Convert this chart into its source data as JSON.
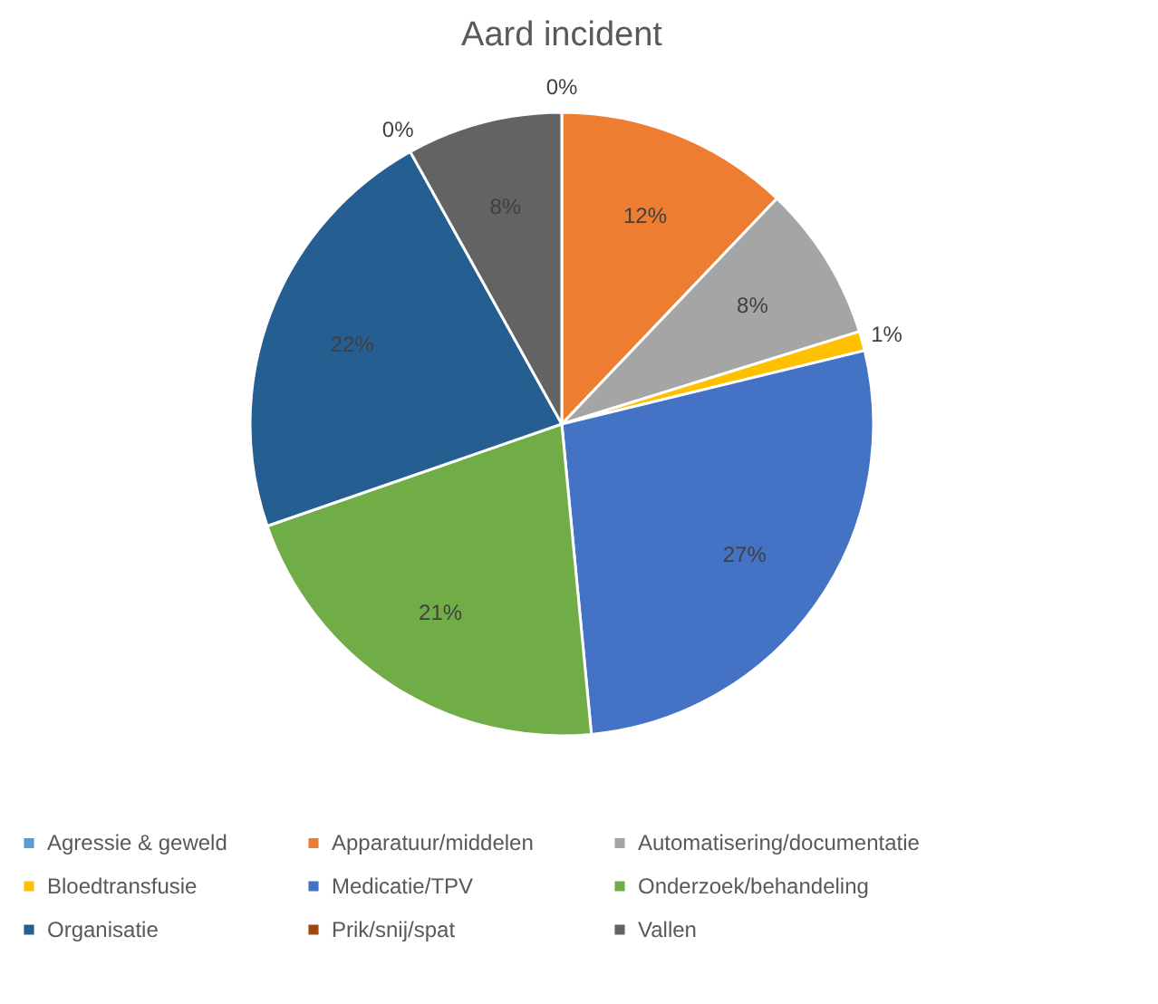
{
  "chart_data": {
    "type": "pie",
    "title": "Aard incident",
    "categories": [
      "Agressie & geweld",
      "Apparatuur/middelen",
      "Automatisering/documentatie",
      "Bloedtransfusie",
      "Medicatie/TPV",
      "Onderzoek/behandeling",
      "Organisatie",
      "Prik/snij/spat",
      "Vallen"
    ],
    "values": [
      0,
      12,
      8,
      1,
      27,
      21,
      22,
      0,
      8
    ],
    "colors": [
      "#5b9bd5",
      "#ed7d31",
      "#a5a5a5",
      "#ffc000",
      "#4472c4",
      "#70ad47",
      "#255e91",
      "#9e480e",
      "#636363"
    ],
    "value_labels": [
      "0%",
      "12%",
      "8%",
      "1%",
      "27%",
      "21%",
      "22%",
      "0%",
      "8%"
    ],
    "legend": "bottom"
  }
}
